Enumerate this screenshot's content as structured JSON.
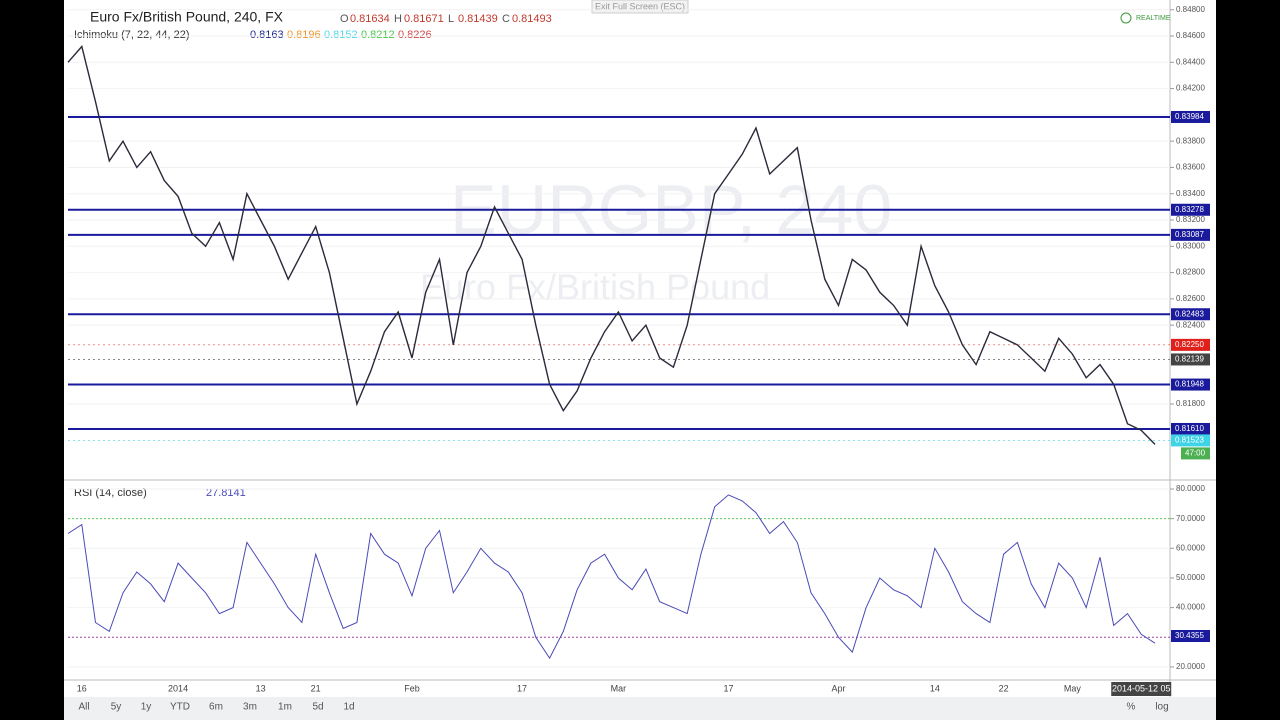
{
  "ui": {
    "exit_button": "Exit Full Screen (ESC)",
    "realtime": "REALTIME",
    "watermark_symbol": "EURGBP, 240",
    "watermark_name": "Euro Fx/British Pound",
    "ranges": [
      "All",
      "5y",
      "1y",
      "YTD",
      "6m",
      "3m",
      "1m",
      "5d",
      "1d"
    ],
    "percent": "%",
    "log": "log",
    "countdown": "47:00"
  },
  "chart_data": [
    {
      "type": "line",
      "title": "Euro Fx/British Pound, 240, FX",
      "color": "#2a2a3a",
      "ohlc": [
        {
          "label": "O",
          "value": "0.81634"
        },
        {
          "label": "H",
          "value": "0.81671"
        },
        {
          "label": "L",
          "value": "0.81439"
        },
        {
          "label": "C",
          "value": "0.81493"
        }
      ],
      "indicator": {
        "name": "Ichimoku (7, 22, 44, 22)",
        "values": [
          {
            "text": "0.8163",
            "color": "#1c2a8c"
          },
          {
            "text": "0.8196",
            "color": "#f0962a"
          },
          {
            "text": "0.8152",
            "color": "#4fd6e8"
          },
          {
            "text": "0.8212",
            "color": "#48c848"
          },
          {
            "text": "0.8226",
            "color": "#d04848"
          }
        ]
      },
      "values": [
        0.844,
        0.8452,
        0.841,
        0.8365,
        0.838,
        0.836,
        0.8372,
        0.835,
        0.8338,
        0.831,
        0.83,
        0.8318,
        0.829,
        0.834,
        0.832,
        0.83,
        0.8275,
        0.8295,
        0.8315,
        0.828,
        0.823,
        0.818,
        0.8205,
        0.8235,
        0.825,
        0.8215,
        0.8265,
        0.829,
        0.8225,
        0.828,
        0.83,
        0.833,
        0.831,
        0.829,
        0.824,
        0.8195,
        0.8175,
        0.819,
        0.8215,
        0.8235,
        0.825,
        0.8228,
        0.824,
        0.8215,
        0.8208,
        0.824,
        0.829,
        0.834,
        0.8355,
        0.837,
        0.839,
        0.8355,
        0.8365,
        0.8375,
        0.832,
        0.8275,
        0.8255,
        0.829,
        0.8282,
        0.8265,
        0.8255,
        0.824,
        0.83,
        0.827,
        0.825,
        0.8225,
        0.821,
        0.8235,
        0.823,
        0.8225,
        0.8215,
        0.8205,
        0.823,
        0.8218,
        0.82,
        0.821,
        0.8195,
        0.8165,
        0.816,
        0.81493
      ],
      "ylim": [
        0.81237,
        0.84836
      ],
      "yticks": [
        {
          "value": 0.848,
          "label": "0.84800"
        },
        {
          "value": 0.846,
          "label": "0.84600"
        },
        {
          "value": 0.844,
          "label": "0.84400"
        },
        {
          "value": 0.842,
          "label": "0.84200"
        },
        {
          "value": 0.84,
          "label": "0.84000"
        },
        {
          "value": 0.838,
          "label": "0.83800"
        },
        {
          "value": 0.836,
          "label": "0.83600"
        },
        {
          "value": 0.834,
          "label": "0.83400"
        },
        {
          "value": 0.832,
          "label": "0.83200"
        },
        {
          "value": 0.83,
          "label": "0.83000"
        },
        {
          "value": 0.828,
          "label": "0.82800"
        },
        {
          "value": 0.826,
          "label": "0.82600"
        },
        {
          "value": 0.824,
          "label": "0.82400"
        },
        {
          "value": 0.818,
          "label": "0.81800"
        }
      ],
      "levels": [
        0.83984,
        0.83278,
        0.83087,
        0.82483,
        0.81948,
        {
          "value": 0.8161,
          "label": "0.81610"
        }
      ],
      "level_color": "#1a1a9c",
      "price_tags": [
        {
          "value": 0.8225,
          "label": "0.82250",
          "color": "#e0201b"
        },
        {
          "value": 0.82139,
          "label": "0.82139",
          "color": "#444444"
        },
        {
          "value": 0.81523,
          "label": "0.81523",
          "color": "#3fd3e6"
        }
      ],
      "xticks": [
        {
          "value": 1,
          "label": "16"
        },
        {
          "value": 8,
          "label": "2014"
        },
        {
          "value": 14,
          "label": "13"
        },
        {
          "value": 18,
          "label": "21"
        },
        {
          "value": 25,
          "label": "Feb"
        },
        {
          "value": 33,
          "label": "17"
        },
        {
          "value": 40,
          "label": "Mar"
        },
        {
          "value": 48,
          "label": "17"
        },
        {
          "value": 56,
          "label": "Apr"
        },
        {
          "value": 63,
          "label": "14"
        },
        {
          "value": 68,
          "label": "22"
        },
        {
          "value": 73,
          "label": "May"
        },
        {
          "value": 78,
          "label": "2014-05-12 05"
        }
      ]
    },
    {
      "type": "line",
      "title": "RSI (14, close)",
      "value_text": "27.8141",
      "color": "#4a4ab8",
      "values": [
        65,
        68,
        35,
        32,
        45,
        52,
        48,
        42,
        55,
        50,
        45,
        38,
        40,
        62,
        55,
        48,
        40,
        35,
        58,
        45,
        33,
        35,
        65,
        58,
        55,
        44,
        60,
        66,
        45,
        52,
        60,
        55,
        52,
        45,
        30,
        23,
        32,
        46,
        55,
        58,
        50,
        46,
        53,
        42,
        40,
        38,
        58,
        74,
        78,
        76,
        72,
        65,
        69,
        62,
        45,
        38,
        30,
        25,
        40,
        50,
        46,
        44,
        40,
        60,
        52,
        42,
        38,
        35,
        58,
        62,
        48,
        40,
        55,
        50,
        40,
        57,
        34,
        38,
        31,
        28
      ],
      "ylim": [
        15.6,
        82.36
      ],
      "yticks": [
        {
          "value": 80,
          "label": "80.0000"
        },
        {
          "value": 70,
          "label": "70.0000"
        },
        {
          "value": 60,
          "label": "60.0000"
        },
        {
          "value": 50,
          "label": "50.0000"
        },
        {
          "value": 40,
          "label": "40.0000"
        },
        {
          "value": 20,
          "label": "20.0000"
        }
      ],
      "bands": [
        {
          "value": 70,
          "color": "#5cc85c"
        },
        {
          "value": 30,
          "color": "#a040a0"
        }
      ],
      "last_tag": 30.4355,
      "tag_color": "#1a1a9c"
    }
  ]
}
